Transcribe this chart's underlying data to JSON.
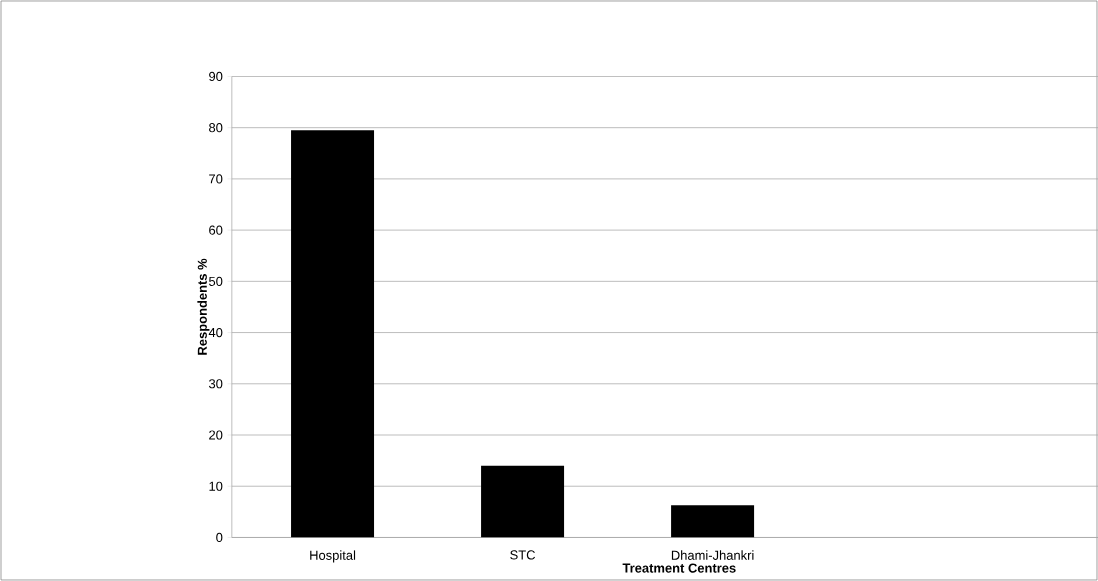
{
  "chart_data": {
    "type": "bar",
    "xlabel": "Treatment Centres",
    "ylabel": "Respondents %",
    "categories": [
      "Hospital",
      "STC",
      "Dhami-Jhankri"
    ],
    "values": [
      79.5,
      14,
      6.3
    ],
    "color": "#000000",
    "ylim": [
      0,
      90
    ],
    "yticks": [
      0,
      10,
      20,
      30,
      40,
      50,
      60,
      70,
      80,
      90
    ],
    "grid": "y"
  }
}
